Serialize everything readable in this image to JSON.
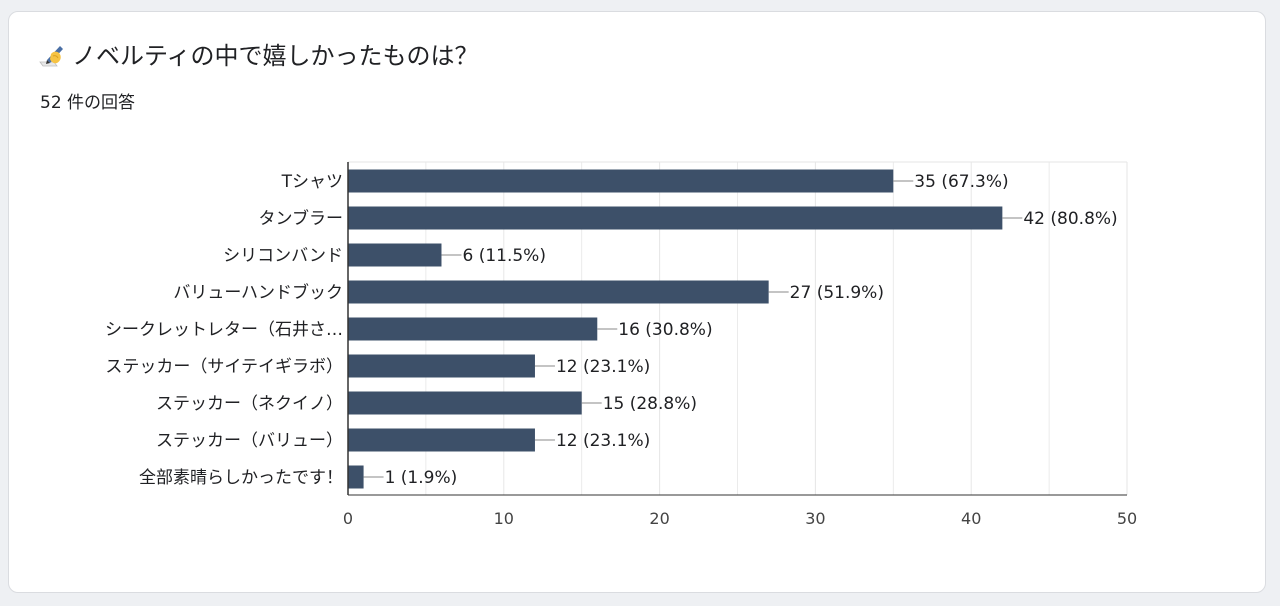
{
  "question": {
    "icon": "writing-hand-icon",
    "title": "ノベルティの中で嬉しかったものは？",
    "response_count": "52 件の回答"
  },
  "colors": {
    "bar": "#3d5069",
    "grid": "#e6e6e6",
    "axis": "#333333",
    "background": "#ffffff"
  },
  "chart_data": {
    "type": "bar",
    "orientation": "horizontal",
    "categories": [
      "Tシャツ",
      "タンブラー",
      "シリコンバンド",
      "バリューハンドブック",
      "シークレットレター（石井さ…",
      "ステッカー（サイテイギラボ）",
      "ステッカー（ネクイノ）",
      "ステッカー（バリュー）",
      "全部素晴らしかったです！"
    ],
    "values": [
      35,
      42,
      6,
      27,
      16,
      12,
      15,
      12,
      1
    ],
    "data_labels": [
      "35 (67.3%)",
      "42 (80.8%)",
      "6 (11.5%)",
      "27 (51.9%)",
      "16 (30.8%)",
      "12 (23.1%)",
      "15 (28.8%)",
      "12 (23.1%)",
      "1 (1.9%)"
    ],
    "xlim": [
      0,
      50
    ],
    "xticks": [
      0,
      10,
      20,
      30,
      40,
      50
    ],
    "grid": true
  }
}
